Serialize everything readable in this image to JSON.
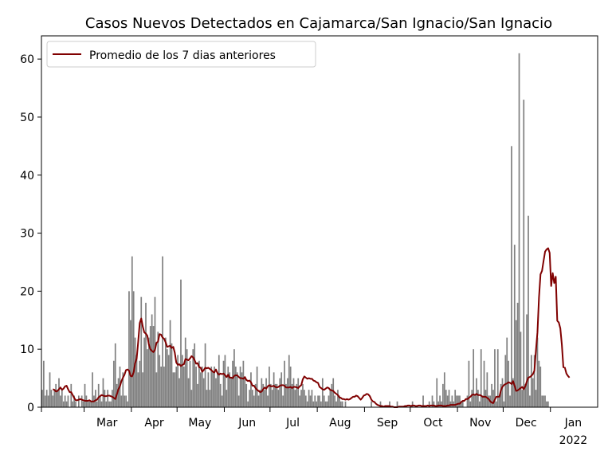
{
  "chart_data": {
    "type": "bar",
    "title": "Casos Nuevos Detectados en Cajamarca/San Ignacio/San Ignacio",
    "xlabel": "",
    "ylabel": "",
    "ylim": [
      0,
      64
    ],
    "yticks": [
      0,
      10,
      20,
      30,
      40,
      50,
      60
    ],
    "x_start": "2021-02-01",
    "x_end": "2022-01-31",
    "xticks": [
      {
        "date": "2021-03-01",
        "label": "Mar"
      },
      {
        "date": "2021-04-01",
        "label": "Apr"
      },
      {
        "date": "2021-05-01",
        "label": "May"
      },
      {
        "date": "2021-06-01",
        "label": "Jun"
      },
      {
        "date": "2021-07-01",
        "label": "Jul"
      },
      {
        "date": "2021-08-01",
        "label": "Aug"
      },
      {
        "date": "2021-09-01",
        "label": "Sep"
      },
      {
        "date": "2021-10-01",
        "label": "Oct"
      },
      {
        "date": "2021-11-01",
        "label": "Nov"
      },
      {
        "date": "2021-12-01",
        "label": "Dec"
      },
      {
        "date": "2022-01-01",
        "label": "Jan",
        "sublabel": "2022"
      }
    ],
    "bar_color": "#808080",
    "line_color": "#800000",
    "legend": {
      "position": "upper-left",
      "entries": [
        "Promedio de los 7 dias anteriores"
      ]
    },
    "series": [
      {
        "kind": "bars",
        "values": [
          3,
          8,
          2,
          3,
          2,
          6,
          3,
          2,
          3,
          4,
          3,
          5,
          2,
          3,
          1,
          2,
          1,
          2,
          0,
          4,
          1,
          2,
          1,
          0,
          2,
          0,
          2,
          1,
          4,
          2,
          1,
          1,
          1,
          6,
          2,
          3,
          1,
          4,
          2,
          1,
          5,
          3,
          1,
          3,
          1,
          1,
          3,
          8,
          11,
          4,
          5,
          7,
          2,
          6,
          2,
          2,
          1,
          20,
          15,
          26,
          20,
          12,
          9,
          6,
          8,
          19,
          6,
          12,
          18,
          10,
          12,
          14,
          16,
          14,
          19,
          6,
          13,
          9,
          7,
          26,
          7,
          12,
          10,
          9,
          15,
          11,
          6,
          6,
          7,
          9,
          5,
          22,
          9,
          7,
          12,
          10,
          5,
          8,
          3,
          10,
          11,
          7,
          4,
          8,
          6,
          7,
          5,
          11,
          3,
          6,
          3,
          7,
          6,
          7,
          5,
          6,
          9,
          4,
          2,
          8,
          9,
          3,
          7,
          6,
          5,
          8,
          10,
          7,
          6,
          2,
          7,
          6,
          8,
          5,
          4,
          1,
          3,
          6,
          3,
          2,
          4,
          7,
          2,
          3,
          5,
          4,
          3,
          5,
          2,
          7,
          4,
          3,
          6,
          4,
          4,
          3,
          5,
          6,
          2,
          8,
          4,
          5,
          9,
          7,
          4,
          5,
          3,
          4,
          5,
          2,
          3,
          4,
          3,
          2,
          1,
          3,
          2,
          3,
          1,
          2,
          1,
          2,
          2,
          1,
          5,
          2,
          1,
          1,
          2,
          3,
          4,
          5,
          2,
          1,
          3,
          2,
          1,
          1,
          0,
          1,
          0,
          0,
          0,
          0,
          0,
          0,
          0,
          0,
          0,
          0,
          0,
          0,
          0,
          0,
          0,
          0,
          1,
          0,
          0,
          0,
          0,
          0,
          1,
          0,
          0,
          0,
          0,
          0,
          1,
          0,
          0,
          0,
          0,
          1,
          0,
          0,
          0,
          0,
          0,
          0,
          0,
          0,
          0,
          1,
          0,
          0,
          0,
          0,
          0,
          0,
          2,
          0,
          0,
          0,
          1,
          0,
          2,
          1,
          0,
          5,
          1,
          2,
          1,
          4,
          6,
          3,
          2,
          3,
          1,
          2,
          1,
          3,
          2,
          2,
          2,
          1,
          1,
          0,
          0,
          2,
          8,
          1,
          3,
          10,
          2,
          5,
          3,
          1,
          10,
          2,
          8,
          3,
          6,
          2,
          2,
          4,
          3,
          10,
          1,
          10,
          2,
          4,
          5,
          1,
          9,
          12,
          8,
          2,
          45,
          5,
          28,
          15,
          18,
          61,
          13,
          3,
          53,
          4,
          16,
          33,
          2,
          9,
          5,
          9,
          3,
          12,
          8,
          7,
          2,
          2,
          2,
          1,
          1
        ]
      },
      {
        "kind": "line",
        "name": "Promedio de los 7 dias anteriores",
        "start_index": 7,
        "values": [
          3.1,
          3.0,
          2.7,
          2.8,
          3.1,
          3.4,
          3.0,
          3.2,
          3.6,
          3.7,
          3.1,
          2.6,
          2.6,
          2.1,
          1.6,
          1.2,
          1.2,
          1.3,
          1.4,
          1.3,
          1.2,
          1.1,
          1.1,
          1.1,
          1.2,
          1.0,
          1.0,
          1.0,
          1.2,
          1.3,
          1.7,
          1.9,
          2.1,
          2.0,
          1.9,
          1.9,
          2.0,
          2.0,
          1.9,
          1.8,
          1.6,
          1.4,
          2.2,
          3.1,
          3.6,
          4.5,
          5.1,
          5.6,
          6.4,
          6.5,
          6.3,
          5.4,
          5.3,
          6.0,
          7.6,
          8.4,
          11.3,
          14.5,
          15.3,
          13.9,
          12.9,
          12.7,
          12.3,
          10.8,
          10.0,
          9.7,
          9.5,
          9.9,
          11.1,
          11.3,
          12.6,
          12.5,
          12.0,
          11.8,
          11.2,
          10.4,
          10.5,
          10.6,
          10.2,
          10.4,
          9.4,
          7.7,
          7.3,
          7.4,
          7.1,
          7.3,
          7.4,
          8.3,
          8.2,
          8.1,
          8.4,
          8.8,
          8.6,
          8.1,
          7.5,
          7.6,
          6.9,
          6.8,
          6.1,
          6.4,
          6.8,
          6.7,
          6.8,
          6.6,
          6.4,
          6.1,
          6.0,
          6.5,
          5.9,
          5.6,
          5.8,
          5.7,
          5.8,
          5.5,
          5.2,
          5.6,
          5.1,
          5.1,
          5.0,
          5.4,
          5.5,
          5.5,
          5.2,
          5.0,
          5.0,
          4.9,
          5.2,
          4.7,
          4.5,
          4.6,
          4.3,
          3.7,
          3.7,
          3.3,
          3.0,
          2.8,
          2.6,
          2.7,
          3.1,
          3.4,
          3.2,
          3.6,
          3.8,
          3.6,
          3.6,
          3.7,
          3.5,
          3.4,
          3.5,
          3.7,
          3.8,
          3.8,
          3.7,
          3.4,
          3.4,
          3.4,
          3.5,
          3.3,
          3.5,
          3.5,
          3.4,
          3.3,
          3.6,
          3.8,
          4.8,
          5.3,
          5.1,
          4.9,
          5.0,
          4.9,
          4.9,
          4.6,
          4.5,
          4.3,
          4.2,
          3.5,
          3.3,
          3.1,
          3.0,
          3.2,
          3.4,
          3.3,
          3.0,
          2.9,
          2.8,
          2.5,
          2.3,
          2.1,
          1.7,
          1.6,
          1.4,
          1.4,
          1.3,
          1.4,
          1.3,
          1.4,
          1.6,
          1.8,
          1.8,
          2.0,
          1.9,
          1.6,
          1.3,
          1.6,
          2.0,
          2.1,
          2.3,
          2.2,
          1.9,
          1.3,
          1.0,
          0.9,
          0.6,
          0.4,
          0.3,
          0.2,
          0.2,
          0.1,
          0.2,
          0.2,
          0.2,
          0.2,
          0.1,
          0.1,
          0.0,
          0.0,
          0.0,
          0.1,
          0.1,
          0.1,
          0.1,
          0.2,
          0.2,
          0.3,
          0.3,
          0.2,
          0.3,
          0.3,
          0.2,
          0.2,
          0.3,
          0.3,
          0.2,
          0.2,
          0.2,
          0.2,
          0.3,
          0.2,
          0.3,
          0.3,
          0.3,
          0.2,
          0.2,
          0.3,
          0.3,
          0.3,
          0.2,
          0.2,
          0.2,
          0.3,
          0.3,
          0.4,
          0.4,
          0.4,
          0.4,
          0.5,
          0.6,
          0.6,
          0.9,
          1.1,
          1.1,
          1.4,
          1.4,
          1.6,
          1.8,
          2.1,
          2.2,
          2.1,
          2.3,
          2.1,
          2.1,
          2.0,
          1.8,
          1.8,
          1.8,
          1.6,
          1.4,
          1.0,
          0.8,
          0.7,
          1.3,
          1.8,
          1.8,
          1.8,
          2.9,
          3.5,
          3.8,
          4.0,
          4.1,
          4.3,
          4.2,
          4.0,
          4.5,
          3.7,
          2.8,
          2.9,
          3.1,
          3.3,
          3.5,
          3.1,
          3.6,
          4.4,
          5.1,
          5.2,
          5.4,
          5.7,
          6.3,
          9.8,
          12.9,
          18.9,
          22.9,
          23.5,
          25.2,
          26.8,
          27.2,
          27.4,
          26.6,
          20.9,
          23.1,
          21.4,
          22.5,
          14.9,
          14.6,
          13.6,
          10.8,
          6.9,
          6.8,
          5.8,
          5.4,
          5.1
        ]
      }
    ]
  }
}
